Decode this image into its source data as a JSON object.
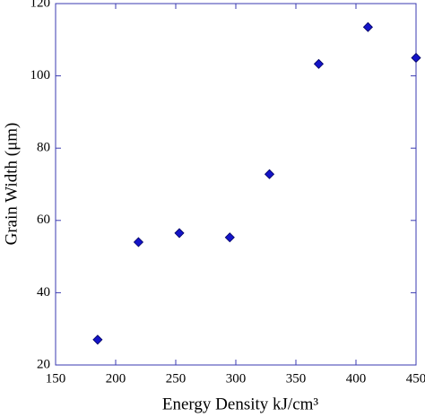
{
  "chart_data": {
    "type": "scatter",
    "x_label": "Energy Density kJ/cm³",
    "y_label": "Grain Width (μm)",
    "x": [
      185,
      219,
      253,
      295,
      328,
      369,
      410,
      450
    ],
    "values": [
      27,
      54,
      56.5,
      55.3,
      72.8,
      103.3,
      113.5,
      105
    ],
    "color": "#1414c8",
    "xlim": [
      150,
      450
    ],
    "xticks": [
      150,
      200,
      250,
      300,
      350,
      400,
      450
    ],
    "ylim": [
      20,
      120
    ],
    "yticks": [
      20,
      40,
      60,
      80,
      100,
      120
    ],
    "grid": false
  }
}
